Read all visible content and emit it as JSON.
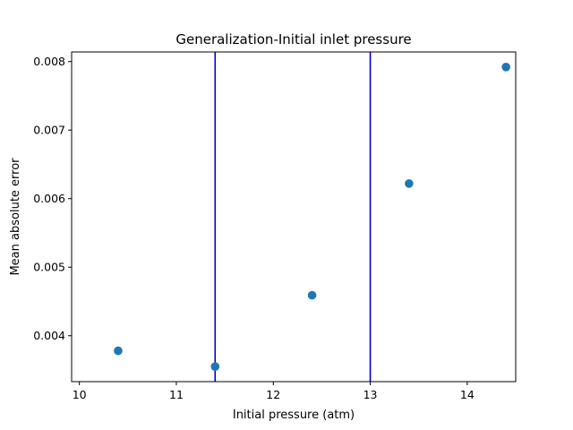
{
  "chart_data": {
    "type": "scatter",
    "title": "Generalization-Initial inlet pressure",
    "xlabel": "Initial pressure (atm)",
    "ylabel": "Mean absolute error",
    "xlim": [
      9.92,
      14.5
    ],
    "ylim": [
      0.00333,
      0.00814
    ],
    "xticks": [
      10,
      11,
      12,
      13,
      14
    ],
    "yticks": [
      0.004,
      0.005,
      0.006,
      0.007,
      0.008
    ],
    "xtick_labels": [
      "10",
      "11",
      "12",
      "13",
      "14"
    ],
    "ytick_labels": [
      "0.004",
      "0.005",
      "0.006",
      "0.007",
      "0.008"
    ],
    "grid": false,
    "points": [
      {
        "x": 10.4,
        "y": 0.00378
      },
      {
        "x": 11.4,
        "y": 0.00355
      },
      {
        "x": 12.4,
        "y": 0.00459
      },
      {
        "x": 13.4,
        "y": 0.00622
      },
      {
        "x": 14.4,
        "y": 0.00792
      }
    ],
    "vertical_lines": [
      {
        "x": 11.4
      },
      {
        "x": 13.0
      }
    ],
    "colors": {
      "marker": "#1f77b4",
      "vline": "#0000cc"
    }
  }
}
